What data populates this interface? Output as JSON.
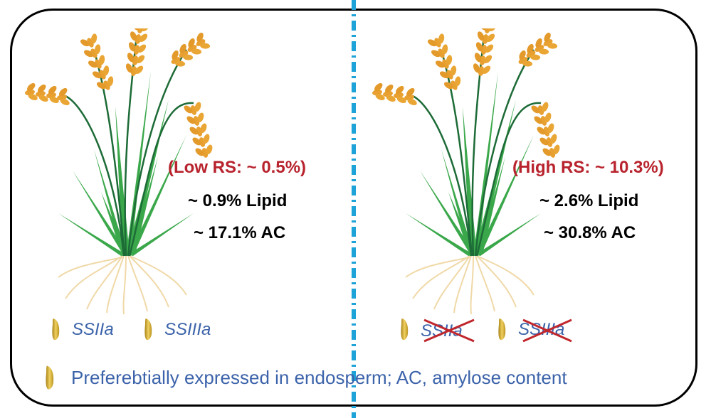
{
  "left_panel": {
    "rs_label": "(Low RS: ~ 0.5%)",
    "lipid_label": "~ 0.9% Lipid",
    "ac_label": "~ 17.1% AC",
    "genes": [
      {
        "name": "SSIIa",
        "knocked_out": false
      },
      {
        "name": "SSIIIa",
        "knocked_out": false
      }
    ]
  },
  "right_panel": {
    "rs_label": "(High RS: ~ 10.3%)",
    "lipid_label": "~ 2.6% Lipid",
    "ac_label": "~ 30.8% AC",
    "genes": [
      {
        "name": "SSIIa",
        "knocked_out": true
      },
      {
        "name": "SSIIIa",
        "knocked_out": true
      }
    ]
  },
  "legend": {
    "text": "Preferebtially expressed in endosperm; AC, amylose content",
    "icon": "rice-grain-icon"
  },
  "colors": {
    "rs_text": "#b8232d",
    "gene_text": "#3c63aa",
    "divider": "#1ea3d8",
    "leaf": "#3aa84a",
    "panicle": "#e8a030",
    "root": "#f0d9a8",
    "grain": "#d8b440",
    "cross": "#c0272d"
  }
}
